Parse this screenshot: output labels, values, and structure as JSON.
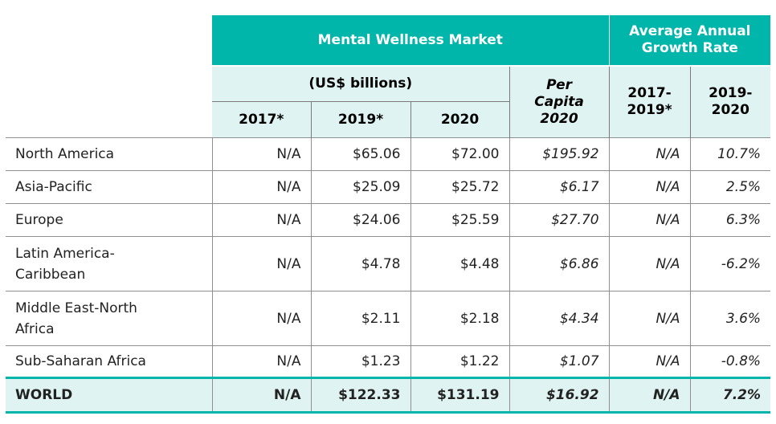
{
  "header": {
    "market_title": "Mental Wellness Market",
    "growth_title": "Average Annual Growth Rate",
    "usd_label": "(US$ billions)",
    "per_capita_line1": "Per",
    "per_capita_line2": "Capita",
    "per_capita_line3": "2020",
    "col_2017": "2017*",
    "col_2019": "2019*",
    "col_2020": "2020",
    "growth_a_line1": "2017-",
    "growth_a_line2": "2019*",
    "growth_b_line1": "2019-",
    "growth_b_line2": "2020"
  },
  "rows": [
    {
      "region_l1": "North America",
      "region_l2": "",
      "v2017": "N/A",
      "v2019": "$65.06",
      "v2020": "$72.00",
      "per_capita": "$195.92",
      "g1719": "N/A",
      "g1920": "10.7%"
    },
    {
      "region_l1": "Asia-Pacific",
      "region_l2": "",
      "v2017": "N/A",
      "v2019": "$25.09",
      "v2020": "$25.72",
      "per_capita": "$6.17",
      "g1719": "N/A",
      "g1920": "2.5%"
    },
    {
      "region_l1": "Europe",
      "region_l2": "",
      "v2017": "N/A",
      "v2019": "$24.06",
      "v2020": "$25.59",
      "per_capita": "$27.70",
      "g1719": "N/A",
      "g1920": "6.3%"
    },
    {
      "region_l1": "Latin America-",
      "region_l2": "Caribbean",
      "v2017": "N/A",
      "v2019": "$4.78",
      "v2020": "$4.48",
      "per_capita": "$6.86",
      "g1719": "N/A",
      "g1920": "-6.2%"
    },
    {
      "region_l1": "Middle East-North",
      "region_l2": "Africa",
      "v2017": "N/A",
      "v2019": "$2.11",
      "v2020": "$2.18",
      "per_capita": "$4.34",
      "g1719": "N/A",
      "g1920": "3.6%"
    },
    {
      "region_l1": "Sub-Saharan Africa",
      "region_l2": "",
      "v2017": "N/A",
      "v2019": "$1.23",
      "v2020": "$1.22",
      "per_capita": "$1.07",
      "g1719": "N/A",
      "g1920": "-0.8%"
    }
  ],
  "world": {
    "region": "WORLD",
    "v2017": "N/A",
    "v2019": "$122.33",
    "v2020": "$131.19",
    "per_capita": "$16.92",
    "g1719": "N/A",
    "g1920": "7.2%"
  },
  "colors": {
    "accent": "#00b5a9",
    "tint": "#dff3f2"
  }
}
